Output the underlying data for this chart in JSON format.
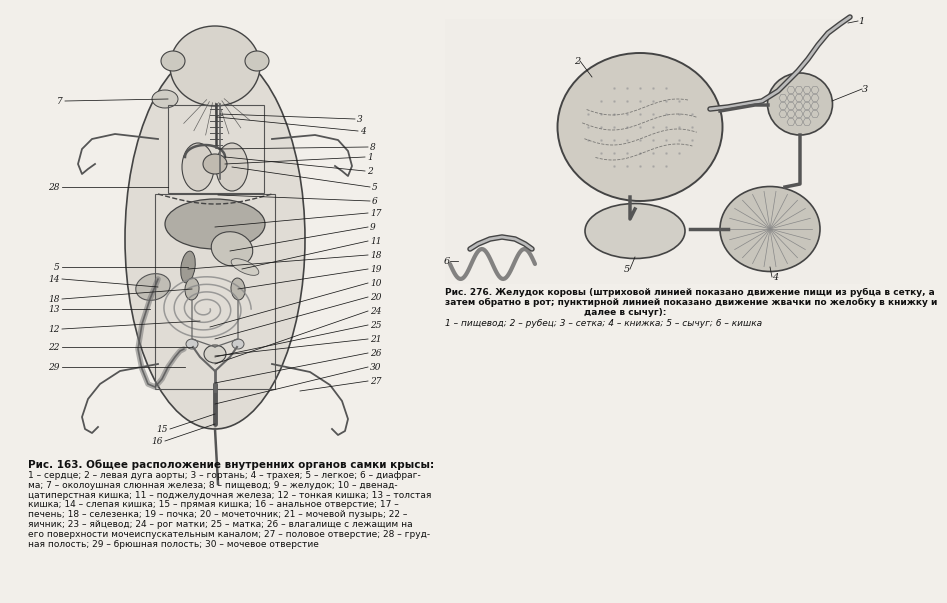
{
  "bg_color": "#f2efea",
  "fig_width": 8.64,
  "fig_height": 5.84,
  "cap276_title_line1": "Рис. 276. Желудок коровы (штриховой линией показано движение пищи из рубца в сетку, а",
  "cap276_title_line2": "затем обратно в рот; пунктирной линией показано движение жвачки по желобку в книжку и",
  "cap276_title_line3": "далее в сычуг):",
  "cap276_body": "1 – пищевод; 2 – рубец; 3 – сетка; 4 – книжка; 5 – сычуг; 6 – кишка",
  "cap163_title": "Рис. 163. Общее расположение внутренних органов самки крысы:",
  "cap163_line1": "1 – сердце; 2 – левая дуга аорты; 3 – гортань; 4 – трахея; 5 – легкое; 6 – диафраг-",
  "cap163_line2": "ма; 7 – околоушная слюнная железа; 8 – пищевод; 9 – желудок; 10 – двенад-",
  "cap163_line3": "цатиперстная кишка; 11 – поджелудочная железа; 12 – тонкая кишка; 13 – толстая",
  "cap163_line4": "кишка; 14 – слепая кишка; 15 – прямая кишка; 16 – анальное отверстие; 17 –",
  "cap163_line5": "печень; 18 – селезенка; 19 – почка; 20 – мочеточник; 21 – мочевой пузырь; 22 –",
  "cap163_line6": "яичник; 23 – яйцевод; 24 – рог матки; 25 – матка; 26 – влагалище с лежащим на",
  "cap163_line7": "его поверхности мочеиспускательным каналом; 27 – половое отверстие; 28 – груд-",
  "cap163_line8": "ная полость; 29 – брюшная полость; 30 – мочевое отверстие"
}
